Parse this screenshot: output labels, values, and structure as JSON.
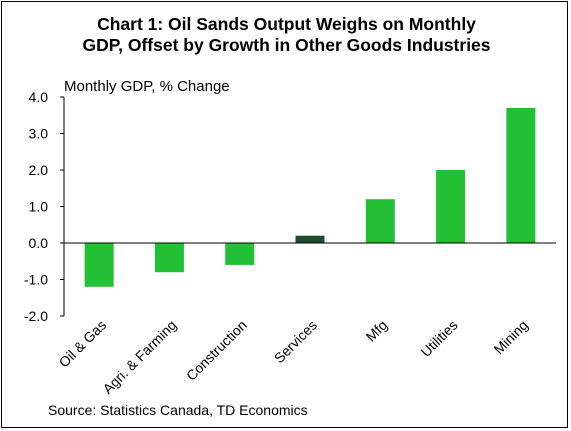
{
  "chart_data": {
    "type": "bar",
    "title_line1": "Chart 1: Oil Sands Output Weighs on Monthly",
    "title_line2": "GDP, Offset by Growth in Other Goods Industries",
    "ylabel": "Monthly GDP, % Change",
    "xlabel": "",
    "categories": [
      "Oil & Gas",
      "Agri. & Farming",
      "Construction",
      "Services",
      "Mfg",
      "Utilities",
      "Mining"
    ],
    "values": [
      -1.2,
      -0.8,
      -0.6,
      0.2,
      1.2,
      2.0,
      3.7
    ],
    "highlight_category": "Services",
    "ylim": [
      -2.0,
      4.0
    ],
    "yticks": [
      "4.0",
      "3.0",
      "2.0",
      "1.0",
      "0.0",
      "-1.0",
      "-2.0"
    ],
    "grid": false,
    "legend": "none",
    "colors": {
      "bar": "#22c034",
      "highlight": "#1e4d2b",
      "axis": "#000000"
    },
    "source": "Source: Statistics Canada, TD Economics"
  }
}
